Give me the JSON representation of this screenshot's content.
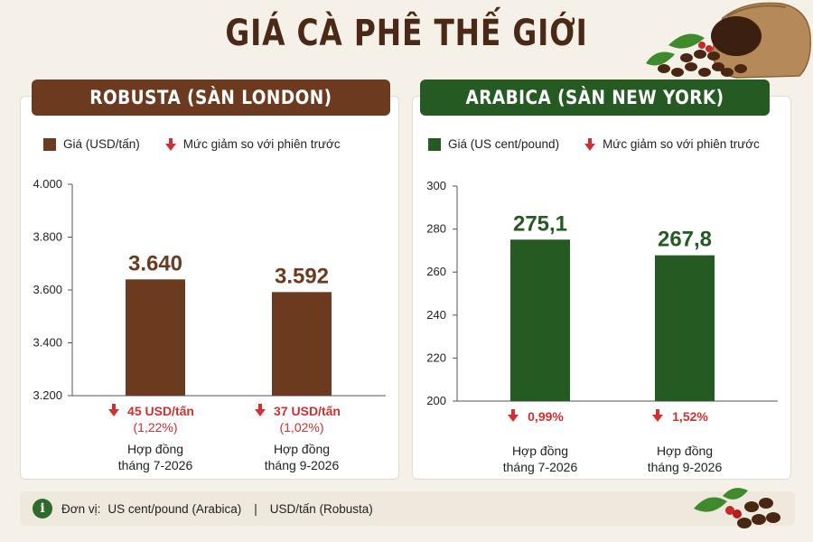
{
  "title": "GIÁ CÀ PHÊ THẾ GIỚI",
  "colors": {
    "robusta": "#6b3a1f",
    "arabica": "#255a22",
    "decline": "#d32f2f",
    "title": "#4a2a17"
  },
  "icons": {
    "legend_decline": "arrow-down-icon",
    "footer": "info-icon",
    "decor": [
      "coffee-bag-icon",
      "coffee-beans-icon"
    ]
  },
  "robusta": {
    "header": "ROBUSTA (SÀN LONDON)",
    "legend_price": "Giá (USD/tấn)",
    "legend_decline": "Mức giảm so với phiên trước"
  },
  "arabica": {
    "header": "ARABICA (SÀN NEW YORK)",
    "legend_price": "Giá (US cent/pound)",
    "legend_decline": "Mức giảm so với phiên trước"
  },
  "footer": {
    "label": "Đơn vị:",
    "unit_arabica": "US cent/pound (Arabica)",
    "separator": "|",
    "unit_robusta": "USD/tấn (Robusta)"
  },
  "chart_data": [
    {
      "type": "bar",
      "title": "ROBUSTA (SÀN LONDON)",
      "categories": [
        "Hợp đồng tháng 7-2026",
        "Hợp đồng tháng 9-2026"
      ],
      "category_lines": [
        [
          "Hợp đồng",
          "tháng 7-2026"
        ],
        [
          "Hợp đồng",
          "tháng 9-2026"
        ]
      ],
      "values": [
        3640,
        3592
      ],
      "value_labels": [
        "3.640",
        "3.592"
      ],
      "declines": [
        {
          "line1": "45 USD/tấn",
          "line2": "(1,22%)"
        },
        {
          "line1": "37 USD/tấn",
          "line2": "(1,02%)"
        }
      ],
      "ylim": [
        3200,
        4000
      ],
      "yticks": [
        3200,
        3400,
        3600,
        3800,
        4000
      ],
      "ytick_labels": [
        "3.200",
        "3.400",
        "3.600",
        "3.800",
        "4.000"
      ],
      "grid": false,
      "legend": "top"
    },
    {
      "type": "bar",
      "title": "ARABICA (SÀN NEW YORK)",
      "categories": [
        "Hợp đồng tháng 7-2026",
        "Hợp đồng tháng 9-2026"
      ],
      "category_lines": [
        [
          "Hợp đồng",
          "tháng 7-2026"
        ],
        [
          "Hợp đồng",
          "tháng 9-2026"
        ]
      ],
      "values": [
        275.1,
        267.8
      ],
      "value_labels": [
        "275,1",
        "267,8"
      ],
      "declines": [
        {
          "line1": "0,99%",
          "line2": ""
        },
        {
          "line1": "1,52%",
          "line2": ""
        }
      ],
      "ylim": [
        200,
        300
      ],
      "yticks": [
        200,
        220,
        240,
        260,
        280,
        300
      ],
      "ytick_labels": [
        "200",
        "220",
        "240",
        "260",
        "280",
        "300"
      ],
      "grid": false,
      "legend": "top"
    }
  ]
}
